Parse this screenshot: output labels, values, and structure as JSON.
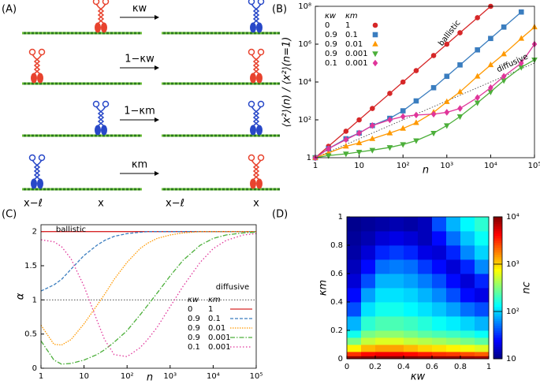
{
  "diagram": {
    "panel_label": "(A)",
    "rates": [
      "κw",
      "1−κw",
      "1−κm",
      "κm"
    ],
    "positions": [
      "x−ℓ",
      "x",
      "x−ℓ",
      "x"
    ]
  },
  "chart_data": [
    {
      "type": "line",
      "panel_label": "(B)",
      "xlog": true,
      "ylog": true,
      "xlabel": "n",
      "ylabel": "⟨x²⟩(n) / ⟨x²⟩(n=1)",
      "xlim": [
        1,
        100000
      ],
      "ylim": [
        1,
        100000000
      ],
      "xticks": [
        1,
        10,
        {
          "value": 100,
          "label": "10²"
        },
        {
          "value": 1000,
          "label": "10³"
        },
        {
          "value": 10000,
          "label": "10⁴"
        },
        {
          "value": 100000,
          "label": "10⁵"
        }
      ],
      "yticks": [
        1,
        {
          "value": 100,
          "label": "10²"
        },
        {
          "value": 10000,
          "label": "10⁴"
        },
        {
          "value": 1000000,
          "label": "10⁶"
        },
        {
          "value": 100000000,
          "label": "10⁸"
        }
      ],
      "legend_header": [
        "κw",
        "κm"
      ],
      "annotations": [
        "ballistic",
        "diffusive"
      ],
      "reference_lines": [
        {
          "x": [
            1,
            100000
          ],
          "values": [
            1,
            100000
          ]
        }
      ],
      "series": [
        {
          "kw": "0",
          "km": "1",
          "color": "#d62728",
          "marker": "circle",
          "dash": "",
          "x": [
            1,
            2,
            5,
            10,
            20,
            50,
            100,
            200,
            500,
            1000,
            2000,
            5000,
            10000
          ],
          "values": [
            1,
            4,
            25,
            100,
            400,
            2500,
            10000,
            40000,
            250000,
            1000000,
            4000000,
            25000000,
            100000000
          ]
        },
        {
          "kw": "0.9",
          "km": "0.1",
          "color": "#3a7dbf",
          "marker": "square",
          "dash": "",
          "x": [
            1,
            2,
            5,
            10,
            20,
            50,
            100,
            200,
            500,
            1000,
            2000,
            5000,
            10000,
            20000,
            50000
          ],
          "values": [
            1,
            3,
            10,
            20,
            50,
            120,
            300,
            1000,
            5000,
            20000,
            80000,
            500000,
            2000000,
            8000000,
            50000000
          ]
        },
        {
          "kw": "0.9",
          "km": "0.01",
          "color": "#ff9900",
          "marker": "triangle-up",
          "dash": "",
          "x": [
            1,
            2,
            5,
            10,
            20,
            50,
            100,
            200,
            500,
            1000,
            2000,
            5000,
            10000,
            20000,
            50000,
            100000
          ],
          "values": [
            1,
            1.8,
            4,
            6,
            10,
            20,
            35,
            70,
            250,
            900,
            3000,
            20000,
            80000,
            300000,
            2000000,
            8000000
          ]
        },
        {
          "kw": "0.9",
          "km": "0.001",
          "color": "#4caf3a",
          "marker": "triangle-down",
          "dash": "",
          "x": [
            1,
            2,
            5,
            10,
            20,
            50,
            100,
            200,
            500,
            1000,
            2000,
            5000,
            10000,
            20000,
            50000,
            100000
          ],
          "values": [
            1,
            1.3,
            1.6,
            2,
            2.5,
            3.5,
            5,
            8,
            20,
            50,
            150,
            800,
            3000,
            12000,
            60000,
            150000
          ]
        },
        {
          "kw": "0.1",
          "km": "0.001",
          "color": "#e0359a",
          "marker": "diamond",
          "dash": "",
          "x": [
            1,
            2,
            5,
            10,
            20,
            50,
            100,
            200,
            500,
            1000,
            2000,
            5000,
            10000,
            20000,
            50000,
            100000
          ],
          "values": [
            1,
            3,
            9,
            20,
            50,
            100,
            150,
            180,
            200,
            250,
            400,
            1500,
            5000,
            20000,
            100000,
            1000000
          ]
        }
      ]
    },
    {
      "type": "line",
      "panel_label": "(C)",
      "xlog": true,
      "ylog": false,
      "xlabel": "n",
      "ylabel": "α",
      "xlim": [
        1,
        100000
      ],
      "ylim": [
        0,
        2.1
      ],
      "xticks": [
        1,
        10,
        {
          "value": 100,
          "label": "10²"
        },
        {
          "value": 1000,
          "label": "10³"
        },
        {
          "value": 10000,
          "label": "10⁴"
        },
        {
          "value": 100000,
          "label": "10⁵"
        }
      ],
      "yticks": [
        0,
        0.5,
        1,
        1.5,
        2
      ],
      "legend_header": [
        "κw",
        "κm"
      ],
      "annotations": [
        "ballistic",
        "diffusive"
      ],
      "reference_lines": [
        {
          "x": [
            1,
            100000
          ],
          "values": [
            1,
            1
          ]
        }
      ],
      "x": [
        1,
        2,
        3,
        5,
        10,
        20,
        30,
        50,
        100,
        200,
        300,
        500,
        1000,
        2000,
        5000,
        10000,
        20000,
        50000,
        100000
      ],
      "series": [
        {
          "kw": "0",
          "km": "1",
          "color": "#d62728",
          "dash": "",
          "values": [
            2,
            2,
            2,
            2,
            2,
            2,
            2,
            2,
            2,
            2,
            2,
            2,
            2,
            2,
            2,
            2,
            2,
            2,
            2
          ]
        },
        {
          "kw": "0.9",
          "km": "0.1",
          "color": "#3a7dbf",
          "dash": "4 2",
          "values": [
            1.13,
            1.22,
            1.3,
            1.45,
            1.65,
            1.8,
            1.87,
            1.93,
            1.97,
            1.99,
            2,
            2,
            2,
            2,
            2,
            2,
            2,
            2,
            2
          ]
        },
        {
          "kw": "0.9",
          "km": "0.01",
          "color": "#ff9900",
          "dash": "1.5 1.5",
          "values": [
            0.63,
            0.35,
            0.34,
            0.42,
            0.65,
            0.92,
            1.08,
            1.3,
            1.55,
            1.75,
            1.83,
            1.9,
            1.95,
            1.98,
            2,
            2,
            2,
            2,
            2
          ]
        },
        {
          "kw": "0.9",
          "km": "0.001",
          "color": "#4caf3a",
          "dash": "6 2 1.5 2",
          "values": [
            0.4,
            0.12,
            0.06,
            0.07,
            0.12,
            0.2,
            0.27,
            0.38,
            0.55,
            0.78,
            0.92,
            1.1,
            1.35,
            1.58,
            1.8,
            1.9,
            1.95,
            1.98,
            1.99
          ]
        },
        {
          "kw": "0.1",
          "km": "0.001",
          "color": "#e0359a",
          "dash": "1.5 2.5",
          "values": [
            1.88,
            1.85,
            1.78,
            1.6,
            1.2,
            0.7,
            0.42,
            0.2,
            0.17,
            0.3,
            0.42,
            0.6,
            0.9,
            1.2,
            1.55,
            1.75,
            1.87,
            1.95,
            1.97
          ]
        }
      ]
    },
    {
      "type": "heatmap",
      "panel_label": "(D)",
      "xlabel": "κw",
      "ylabel": "κm",
      "colorbar_label": "nc",
      "colormap": "jet",
      "clog": true,
      "clim": [
        10,
        10000
      ],
      "cticks": [
        10,
        {
          "value": 100,
          "label": "10²"
        },
        {
          "value": 1000,
          "label": "10³"
        },
        {
          "value": 10000,
          "label": "10⁴"
        }
      ],
      "xlim": [
        0,
        1
      ],
      "ylim": [
        0,
        1
      ],
      "xticks": [
        0,
        0.2,
        0.4,
        0.6,
        0.8,
        1
      ],
      "yticks": [
        0,
        0.2,
        0.4,
        0.6,
        0.8,
        1
      ],
      "x_edges": [
        0,
        0.1,
        0.2,
        0.3,
        0.4,
        0.5,
        0.6,
        0.7,
        0.8,
        0.9,
        1
      ],
      "y_edges": [
        0,
        0.02,
        0.05,
        0.1,
        0.15,
        0.2,
        0.3,
        0.4,
        0.5,
        0.6,
        0.7,
        0.8,
        0.9,
        1
      ],
      "values": [
        [
          9000,
          10000,
          10000,
          10000,
          10000,
          9500,
          9000,
          9000,
          8500,
          8000
        ],
        [
          3000,
          4000,
          4500,
          4500,
          4000,
          3500,
          3000,
          2800,
          2500,
          2200
        ],
        [
          800,
          1200,
          1400,
          1400,
          1200,
          1000,
          900,
          800,
          700,
          600
        ],
        [
          300,
          500,
          600,
          600,
          500,
          450,
          400,
          350,
          300,
          250
        ],
        [
          150,
          300,
          350,
          350,
          300,
          250,
          220,
          200,
          170,
          140
        ],
        [
          80,
          180,
          220,
          220,
          200,
          170,
          140,
          120,
          100,
          80
        ],
        [
          40,
          110,
          150,
          150,
          130,
          110,
          90,
          70,
          50,
          40
        ],
        [
          25,
          70,
          110,
          110,
          100,
          80,
          60,
          40,
          25,
          20
        ],
        [
          18,
          40,
          80,
          80,
          70,
          55,
          40,
          25,
          18,
          30
        ],
        [
          15,
          25,
          50,
          55,
          50,
          35,
          25,
          18,
          30,
          60
        ],
        [
          13,
          18,
          30,
          35,
          30,
          20,
          18,
          30,
          60,
          100
        ],
        [
          12,
          14,
          18,
          20,
          18,
          15,
          25,
          50,
          90,
          140
        ],
        [
          11,
          12,
          13,
          14,
          13,
          15,
          40,
          80,
          130,
          180
        ]
      ]
    }
  ]
}
